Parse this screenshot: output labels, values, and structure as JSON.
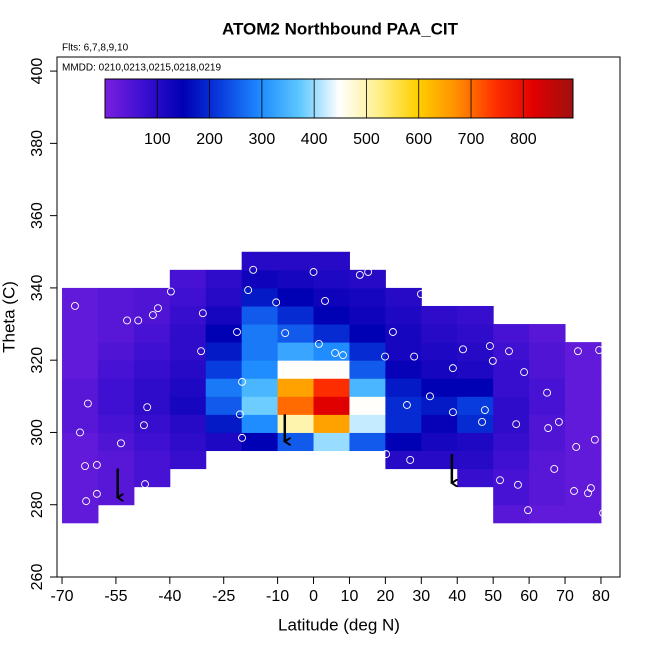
{
  "chart_data": {
    "type": "heatmap",
    "title": "ATOM2 Northbound PAA_CIT",
    "notes": [
      "Flts: 6,7,8,9,10",
      "MMDD: 0210,0213,0215,0218,0219"
    ],
    "x_label": "Latitude (deg N)",
    "y_label": "Theta (C)",
    "xlim": [
      -71.4,
      85.3
    ],
    "ylim": [
      260,
      403.9
    ],
    "xticks": [
      -70,
      -55,
      -40,
      -25,
      -10,
      0,
      10,
      20,
      30,
      40,
      50,
      60,
      70,
      80
    ],
    "yticks": [
      260,
      280,
      300,
      320,
      340,
      360,
      380,
      400
    ],
    "zlim": [
      0,
      895
    ],
    "zticks": [
      100,
      200,
      300,
      400,
      500,
      600,
      700,
      800
    ],
    "colors": [
      "#7a1fe0",
      "#3b0fd0",
      "#0000b4",
      "#0a3fe0",
      "#1e8cff",
      "#5ec8ff",
      "#ffffff",
      "#fff08c",
      "#ffd000",
      "#ff9000",
      "#ff3000",
      "#e00000",
      "#a01010"
    ],
    "xbins": [
      -70,
      -60,
      -50,
      -40,
      -30,
      -20,
      -10,
      0,
      10,
      20,
      30,
      40,
      50,
      60,
      70,
      80
    ],
    "ybins": [
      275,
      280,
      285,
      290,
      295,
      300,
      305,
      310,
      315,
      320,
      325,
      330,
      335,
      340,
      345,
      350
    ],
    "z": [
      [
        30,
        null,
        null,
        null,
        null,
        null,
        null,
        null,
        null,
        null,
        null,
        null,
        40,
        30,
        30
      ],
      [
        30,
        40,
        null,
        null,
        null,
        null,
        null,
        null,
        null,
        null,
        null,
        null,
        60,
        40,
        30
      ],
      [
        30,
        40,
        60,
        null,
        null,
        null,
        null,
        null,
        null,
        null,
        null,
        80,
        60,
        40,
        30
      ],
      [
        30,
        40,
        60,
        80,
        null,
        null,
        null,
        null,
        null,
        100,
        100,
        100,
        70,
        40,
        30
      ],
      [
        30,
        50,
        70,
        90,
        110,
        150,
        250,
        400,
        250,
        150,
        120,
        110,
        80,
        50,
        30
      ],
      [
        40,
        60,
        80,
        100,
        180,
        300,
        500,
        650,
        420,
        200,
        140,
        200,
        90,
        50,
        30
      ],
      [
        40,
        70,
        90,
        120,
        250,
        380,
        700,
        820,
        450,
        200,
        180,
        220,
        90,
        60,
        30
      ],
      [
        40,
        70,
        90,
        110,
        280,
        350,
        650,
        750,
        350,
        180,
        150,
        150,
        80,
        60,
        30
      ],
      [
        30,
        60,
        80,
        100,
        220,
        300,
        450,
        450,
        250,
        140,
        120,
        110,
        80,
        50,
        30
      ],
      [
        30,
        50,
        70,
        90,
        180,
        280,
        330,
        300,
        200,
        120,
        110,
        100,
        70,
        50,
        30
      ],
      [
        30,
        40,
        60,
        90,
        150,
        280,
        250,
        200,
        150,
        120,
        100,
        90,
        60,
        40,
        null
      ],
      [
        30,
        40,
        50,
        80,
        120,
        250,
        200,
        150,
        130,
        110,
        90,
        80,
        null,
        null,
        null
      ],
      [
        30,
        40,
        50,
        70,
        100,
        180,
        150,
        130,
        120,
        100,
        null,
        null,
        null,
        null,
        null
      ],
      [
        null,
        null,
        null,
        60,
        90,
        130,
        120,
        110,
        100,
        null,
        null,
        null,
        null,
        null,
        null
      ],
      [
        null,
        null,
        null,
        null,
        null,
        100,
        100,
        100,
        null,
        null,
        null,
        null,
        null,
        null,
        null
      ]
    ],
    "points": {
      "color": "#ffffff",
      "x": [
        -66.4,
        -65,
        -62.8,
        -60.3,
        -63.6,
        -60.3,
        -63.3,
        -53.6,
        -51.9,
        -48.8,
        -46.3,
        -47.2,
        -46.9,
        -44.7,
        -43.3,
        -39.7,
        -31.3,
        -30.8,
        -21.3,
        -20.5,
        -19.9,
        -19.9,
        -18.2,
        -16.8,
        -10.4,
        -7.9,
        0,
        1.5,
        6,
        8.2,
        3.2,
        11.3,
        12.9,
        15.2,
        20.2,
        22.1,
        19.9,
        26,
        26.9,
        28,
        29.9,
        32.4,
        38.8,
        38.8,
        41.6,
        46.9,
        47.7,
        49.1,
        49.9,
        51.9,
        54.4,
        56.4,
        56.9,
        58.6,
        59.7,
        65,
        65.3,
        67,
        68.3,
        72.5,
        73.1,
        73.6,
        76.4,
        77.2,
        78.3,
        79.5,
        80.6
      ],
      "y": [
        335,
        300,
        308,
        291,
        290.7,
        283,
        281,
        297,
        331,
        331,
        307,
        302,
        285.7,
        332.5,
        334.4,
        339,
        322.5,
        333,
        327.8,
        305,
        314,
        298.5,
        339.4,
        345,
        336,
        327.5,
        344.4,
        324.5,
        322,
        321.4,
        336.4,
        306,
        343.6,
        344.4,
        294,
        327.8,
        321,
        307.6,
        292.4,
        321,
        338.3,
        310,
        305.6,
        317.8,
        323,
        302.9,
        306.2,
        323.9,
        319.8,
        286.8,
        322.5,
        302.3,
        285.5,
        316.7,
        278.5,
        311,
        301.2,
        289.9,
        302.9,
        283.8,
        296,
        322.5,
        283.2,
        284.6,
        298,
        322.8,
        277.7
      ]
    },
    "arrows": {
      "x": [
        -54.5,
        -8,
        38.5
      ],
      "y_top": [
        290,
        305,
        294
      ],
      "y_bottom": [
        282,
        297.5,
        286
      ]
    }
  }
}
